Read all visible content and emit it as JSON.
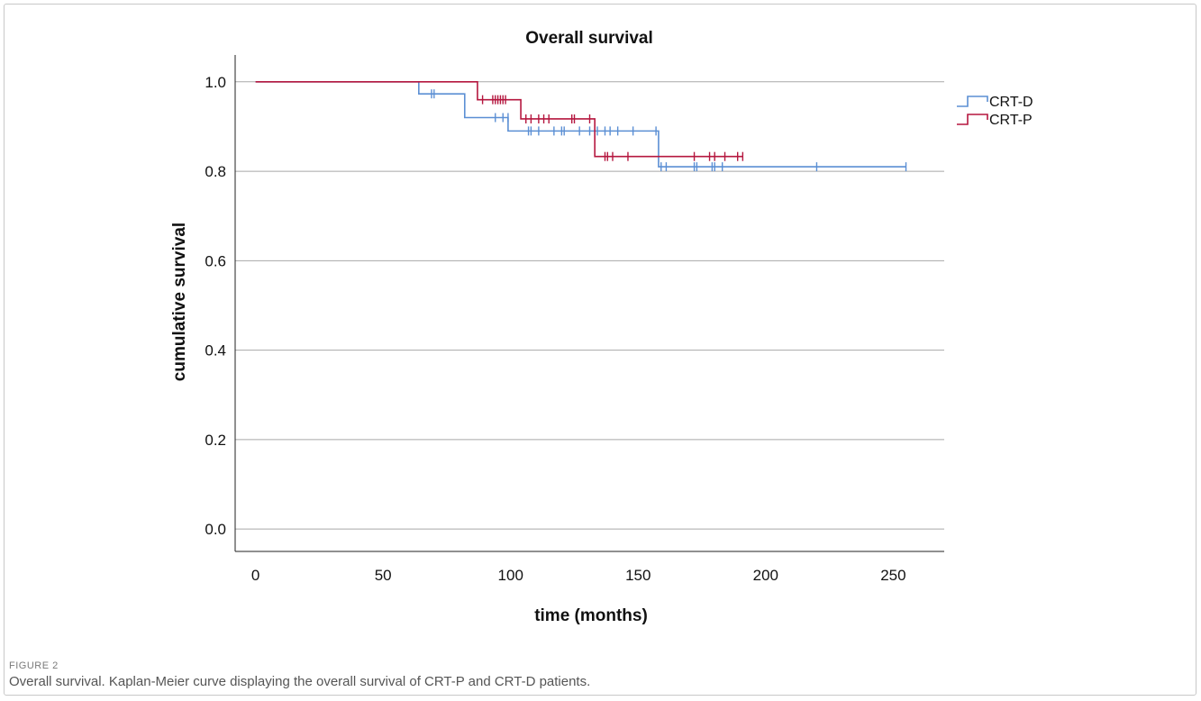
{
  "chart_data": {
    "type": "line",
    "title": "Overall survival",
    "xlabel": "time (months)",
    "ylabel": "cumulative survival",
    "xlim": [
      -8,
      270
    ],
    "ylim": [
      -0.05,
      1.06
    ],
    "x_ticks": [
      "0",
      "50",
      "100",
      "150",
      "200",
      "250"
    ],
    "x_tick_values": [
      0,
      50,
      100,
      150,
      200,
      250
    ],
    "y_ticks": [
      "0.0",
      "0.2",
      "0.4",
      "0.6",
      "0.8",
      "1.0"
    ],
    "y_tick_values": [
      0.0,
      0.2,
      0.4,
      0.6,
      0.8,
      1.0
    ],
    "grid": "horizontal",
    "legend_position": "top-right",
    "series": [
      {
        "name": "CRT-D",
        "color": "#5b8fd4",
        "steps": [
          [
            0,
            1.0
          ],
          [
            64,
            0.973
          ],
          [
            82,
            0.92
          ],
          [
            99,
            0.89
          ],
          [
            158,
            0.81
          ],
          [
            255,
            0.81
          ]
        ],
        "censored": [
          [
            69,
            0.973
          ],
          [
            70,
            0.973
          ],
          [
            94,
            0.92
          ],
          [
            97,
            0.92
          ],
          [
            99,
            0.92
          ],
          [
            107,
            0.89
          ],
          [
            108,
            0.89
          ],
          [
            111,
            0.89
          ],
          [
            117,
            0.89
          ],
          [
            120,
            0.89
          ],
          [
            121,
            0.89
          ],
          [
            127,
            0.89
          ],
          [
            131,
            0.89
          ],
          [
            134,
            0.89
          ],
          [
            137,
            0.89
          ],
          [
            139,
            0.89
          ],
          [
            142,
            0.89
          ],
          [
            148,
            0.89
          ],
          [
            157,
            0.89
          ],
          [
            159,
            0.81
          ],
          [
            161,
            0.81
          ],
          [
            172,
            0.81
          ],
          [
            173,
            0.81
          ],
          [
            179,
            0.81
          ],
          [
            180,
            0.81
          ],
          [
            183,
            0.81
          ],
          [
            220,
            0.81
          ],
          [
            255,
            0.81
          ]
        ]
      },
      {
        "name": "CRT-P",
        "color": "#b5173f",
        "steps": [
          [
            0,
            1.0
          ],
          [
            87,
            0.96
          ],
          [
            104,
            0.917
          ],
          [
            133,
            0.833
          ],
          [
            191,
            0.833
          ]
        ],
        "censored": [
          [
            89,
            0.96
          ],
          [
            93,
            0.96
          ],
          [
            94,
            0.96
          ],
          [
            95,
            0.96
          ],
          [
            96,
            0.96
          ],
          [
            97,
            0.96
          ],
          [
            98,
            0.96
          ],
          [
            106,
            0.917
          ],
          [
            108,
            0.917
          ],
          [
            111,
            0.917
          ],
          [
            113,
            0.917
          ],
          [
            115,
            0.917
          ],
          [
            124,
            0.917
          ],
          [
            125,
            0.917
          ],
          [
            131,
            0.917
          ],
          [
            137,
            0.833
          ],
          [
            138,
            0.833
          ],
          [
            140,
            0.833
          ],
          [
            146,
            0.833
          ],
          [
            172,
            0.833
          ],
          [
            178,
            0.833
          ],
          [
            180,
            0.833
          ],
          [
            184,
            0.833
          ],
          [
            189,
            0.833
          ],
          [
            191,
            0.833
          ]
        ]
      }
    ]
  },
  "caption": {
    "label": "FIGURE 2",
    "text": "Overall survival. Kaplan-Meier curve displaying the overall survival of CRT-P and CRT-D patients."
  }
}
